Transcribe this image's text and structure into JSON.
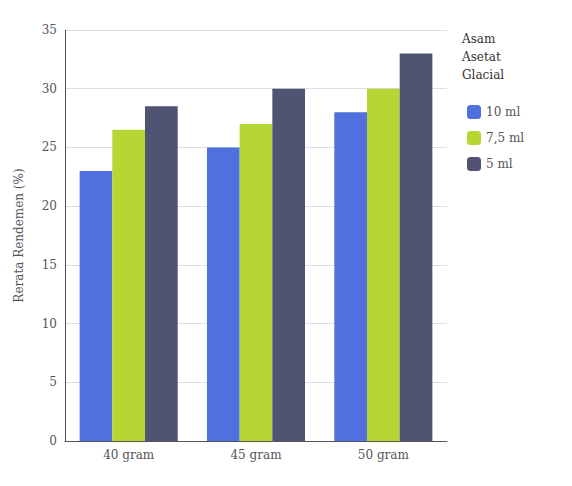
{
  "chart_data": {
    "type": "bar",
    "ylabel": "Rerata Rendemen (%)",
    "categories": [
      "40 gram",
      "45 gram",
      "50 gram"
    ],
    "series": [
      {
        "name": "10 ml",
        "values": [
          23,
          25,
          28
        ]
      },
      {
        "name": "7,5 ml",
        "values": [
          26.5,
          27,
          30
        ]
      },
      {
        "name": "5 ml",
        "values": [
          28.5,
          30,
          33
        ]
      }
    ],
    "legend_title": "Asam\nAsetat\nGlacial",
    "legend": "right",
    "ylim": [
      0,
      35
    ],
    "yticks": [
      0,
      5,
      10,
      15,
      20,
      25,
      30,
      35
    ],
    "grid": true
  }
}
